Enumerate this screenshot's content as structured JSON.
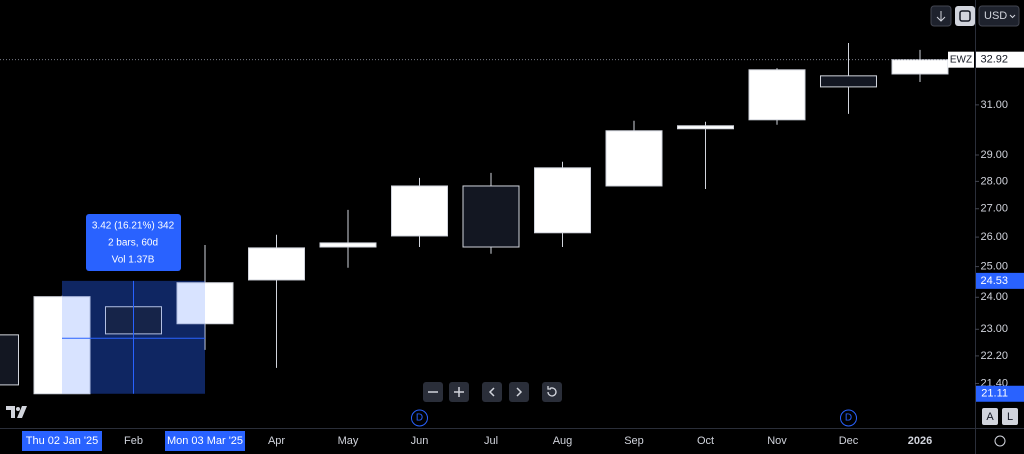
{
  "chart_data": {
    "type": "candlestick",
    "symbol": "EWZ",
    "currency": "USD",
    "categories": [
      null,
      "Thu 02 Jan '25",
      "Feb",
      "Mon 03 Mar '25",
      "Apr",
      "May",
      "Jun",
      "Jul",
      "Aug",
      "Sep",
      "Oct",
      "Nov",
      "Dec",
      "2026"
    ],
    "open": [
      22.83,
      21.11,
      23.7,
      23.17,
      24.56,
      25.66,
      26.04,
      27.83,
      26.15,
      27.83,
      30.03,
      30.39,
      32.22,
      32.3
    ],
    "high": [
      22.83,
      24.05,
      24.2,
      25.73,
      26.08,
      26.96,
      28.13,
      28.32,
      28.74,
      30.35,
      30.31,
      32.55,
      33.66,
      33.35
    ],
    "low": [
      21.36,
      21.11,
      22.7,
      22.38,
      21.85,
      24.96,
      25.66,
      25.43,
      25.66,
      27.83,
      27.72,
      30.19,
      30.63,
      31.96
    ],
    "close": [
      21.36,
      24.02,
      22.86,
      24.47,
      25.63,
      25.8,
      27.83,
      25.66,
      28.51,
      29.95,
      30.15,
      32.48,
      31.75,
      32.92
    ],
    "up_color": "#ffffff",
    "down_color": "#131722",
    "log_scale": true,
    "grid": false,
    "ylim": [
      20.17,
      35.64
    ],
    "yticks": [
      {
        "value": 31,
        "label": "31.00"
      },
      {
        "value": 29,
        "label": "29.00"
      },
      {
        "value": 28,
        "label": "28.00"
      },
      {
        "value": 27,
        "label": "27.00"
      },
      {
        "value": 26,
        "label": "26.00"
      },
      {
        "value": 25,
        "label": "25.00"
      },
      {
        "value": 24,
        "label": "24.00"
      },
      {
        "value": 23,
        "label": "23.00"
      },
      {
        "value": 22.2,
        "label": "22.20"
      },
      {
        "value": 21.4,
        "label": "21.40"
      }
    ],
    "last_price": 32.92,
    "measure": {
      "from": 21.11,
      "to": 24.53,
      "lines": [
        "3.42 (16.21%) 342",
        "2 bars, 60d",
        "Vol 1.37B"
      ]
    },
    "dividend_markers": [
      "D",
      "D"
    ]
  },
  "controls": {
    "scale_buttons": [
      "A",
      "L"
    ]
  }
}
